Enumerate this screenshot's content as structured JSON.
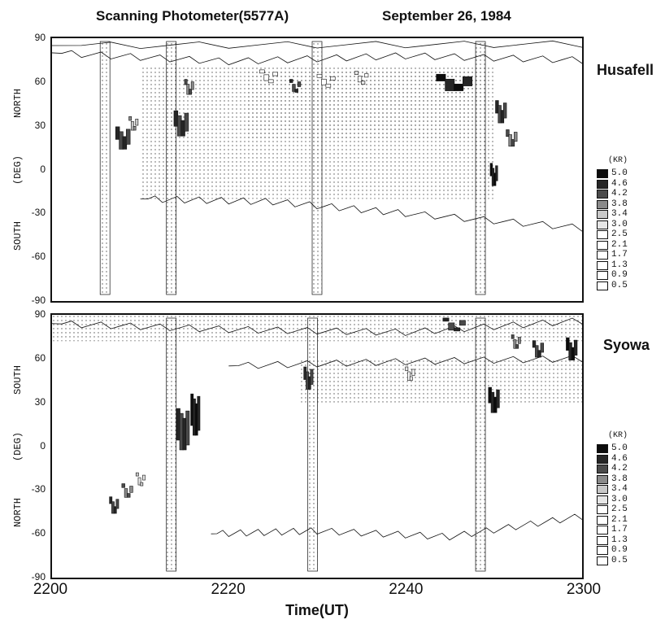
{
  "header": {
    "instrument": "Scanning Photometer(5577A)",
    "date": "September 26, 1984"
  },
  "colors": {
    "ink": "#111111",
    "levels": [
      "#ffffff",
      "#ffffff",
      "#ffffff",
      "#ffffff",
      "#ffffff",
      "#ffffff",
      "#e6e6e6",
      "#c8c8c8",
      "#8a8a8a",
      "#4a4a4a",
      "#262626",
      "#0c0c0c"
    ]
  },
  "chart_data": [
    {
      "type": "heatmap",
      "station": "Husafell",
      "x_ticks": [
        "2200",
        "2220",
        "2240",
        "2300"
      ],
      "y_ticks": [
        "90",
        "60",
        "30",
        "0",
        "-30",
        "-60",
        "-90"
      ],
      "y_axis_words": [
        "NORTH",
        "(DEG)",
        "SOUTH"
      ],
      "ylim": [
        -90,
        90
      ],
      "legend_unit": "(KR)",
      "legend_levels": [
        "5.0",
        "4.6",
        "4.2",
        "3.8",
        "3.4",
        "3.0",
        "2.5",
        "2.1",
        "1.7",
        "1.3",
        "0.9",
        "0.5"
      ],
      "aurora_patches": [
        {
          "t": 8.0,
          "lat": 20,
          "dt": 1.6,
          "dlat": 12,
          "kr": 4.6
        },
        {
          "t": 9.2,
          "lat": 30,
          "dt": 1.0,
          "dlat": 6,
          "kr": 3.8
        },
        {
          "t": 14.6,
          "lat": 30,
          "dt": 1.6,
          "dlat": 14,
          "kr": 4.6
        },
        {
          "t": 15.5,
          "lat": 55,
          "dt": 1.0,
          "dlat": 7,
          "kr": 4.2
        },
        {
          "t": 24.5,
          "lat": 63,
          "dt": 2.0,
          "dlat": 4,
          "kr": 2.5
        },
        {
          "t": 27.5,
          "lat": 56,
          "dt": 1.2,
          "dlat": 5,
          "kr": 4.6
        },
        {
          "t": 31.0,
          "lat": 60,
          "dt": 2.0,
          "dlat": 4,
          "kr": 2.5
        },
        {
          "t": 35.0,
          "lat": 62,
          "dt": 1.5,
          "dlat": 4,
          "kr": 3.0
        },
        {
          "t": 45.5,
          "lat": 58,
          "dt": 4.0,
          "dlat": 8,
          "kr": 5.0
        },
        {
          "t": 50.8,
          "lat": 38,
          "dt": 1.2,
          "dlat": 12,
          "kr": 4.6
        },
        {
          "t": 50.0,
          "lat": -5,
          "dt": 0.8,
          "dlat": 12,
          "kr": 5.0
        },
        {
          "t": 52.0,
          "lat": 20,
          "dt": 1.2,
          "dlat": 8,
          "kr": 4.2
        }
      ]
    },
    {
      "type": "heatmap",
      "station": "Syowa",
      "x_ticks": [
        "2200",
        "2220",
        "2240",
        "2300"
      ],
      "y_ticks": [
        "90",
        "60",
        "30",
        "0",
        "-30",
        "-60",
        "-90"
      ],
      "y_axis_words": [
        "SOUTH",
        "(DEG)",
        "NORTH"
      ],
      "ylim": [
        -90,
        90
      ],
      "legend_unit": "(KR)",
      "legend_levels": [
        "5.0",
        "4.6",
        "4.2",
        "3.8",
        "3.4",
        "3.0",
        "2.5",
        "2.1",
        "1.7",
        "1.3",
        "0.9",
        "0.5"
      ],
      "aurora_patches": [
        {
          "t": 7.0,
          "lat": -42,
          "dt": 1.0,
          "dlat": 8,
          "kr": 4.6
        },
        {
          "t": 8.5,
          "lat": -32,
          "dt": 1.2,
          "dlat": 6,
          "kr": 4.2
        },
        {
          "t": 10.0,
          "lat": -24,
          "dt": 1.0,
          "dlat": 5,
          "kr": 3.4
        },
        {
          "t": 14.8,
          "lat": 10,
          "dt": 1.4,
          "dlat": 25,
          "kr": 4.6
        },
        {
          "t": 16.2,
          "lat": 20,
          "dt": 1.0,
          "dlat": 25,
          "kr": 5.0
        },
        {
          "t": 29.0,
          "lat": 45,
          "dt": 1.0,
          "dlat": 12,
          "kr": 4.6
        },
        {
          "t": 40.5,
          "lat": 48,
          "dt": 1.0,
          "dlat": 6,
          "kr": 3.0
        },
        {
          "t": 45.5,
          "lat": 82,
          "dt": 2.5,
          "dlat": 5,
          "kr": 4.6
        },
        {
          "t": 50.0,
          "lat": 30,
          "dt": 1.2,
          "dlat": 14,
          "kr": 5.0
        },
        {
          "t": 52.5,
          "lat": 70,
          "dt": 1.0,
          "dlat": 6,
          "kr": 4.2
        },
        {
          "t": 55.0,
          "lat": 65,
          "dt": 1.2,
          "dlat": 8,
          "kr": 4.6
        },
        {
          "t": 58.8,
          "lat": 65,
          "dt": 1.2,
          "dlat": 12,
          "kr": 5.0
        }
      ]
    }
  ],
  "x_axis_title": "Time(UT)"
}
